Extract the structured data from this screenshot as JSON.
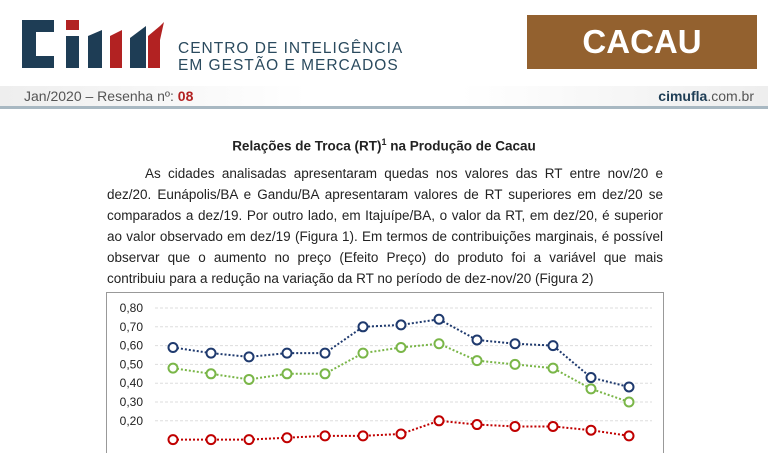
{
  "header": {
    "logo_text": "CIM",
    "org_line1": "CENTRO DE INTELIGÊNCIA",
    "org_line2": "EM GESTÃO E MERCADOS",
    "product": "CACAU",
    "date_label": "Jan/2020 – Resenha nº:",
    "issue": "08",
    "site_bold": "cimufla",
    "site_rest": ".com.br"
  },
  "article": {
    "title": "Relações de Troca (RT)",
    "title_sup": "1",
    "title_rest": " na Produção de Cacau",
    "paragraph": "As cidades analisadas apresentaram quedas nos valores das RT entre nov/20 e dez/20. Eunápolis/BA e Gandu/BA apresentaram valores de RT superiores em dez/20 se comparados a dez/19. Por outro lado, em Itajuípe/BA, o valor da RT, em dez/20, é superior ao valor observado em dez/19 (Figura 1). Em termos de contribuições marginais, é possível observar que o aumento no preço (Efeito Preço) do produto foi a variável que mais contribuiu para a redução na variação da RT no período de dez-nov/20 (Figura 2)"
  },
  "chart_data": {
    "type": "line",
    "ylim": [
      0,
      0.8
    ],
    "yticks": [
      "0,80",
      "0,70",
      "0,60",
      "0,50",
      "0,40",
      "0,30",
      "0,20"
    ],
    "grid": true,
    "series": [
      {
        "name": "blue",
        "color": "#1f3a6e",
        "values": [
          0.59,
          0.56,
          0.54,
          0.56,
          0.56,
          0.7,
          0.71,
          0.74,
          0.63,
          0.61,
          0.6,
          0.43,
          0.38
        ]
      },
      {
        "name": "green",
        "color": "#7ab648",
        "values": [
          0.48,
          0.45,
          0.42,
          0.45,
          0.45,
          0.56,
          0.59,
          0.61,
          0.52,
          0.5,
          0.48,
          0.37,
          0.3
        ]
      },
      {
        "name": "red",
        "color": "#c00000",
        "values": [
          0.1,
          0.1,
          0.1,
          0.11,
          0.12,
          0.12,
          0.13,
          0.2,
          0.18,
          0.17,
          0.17,
          0.15,
          0.12
        ]
      }
    ]
  }
}
